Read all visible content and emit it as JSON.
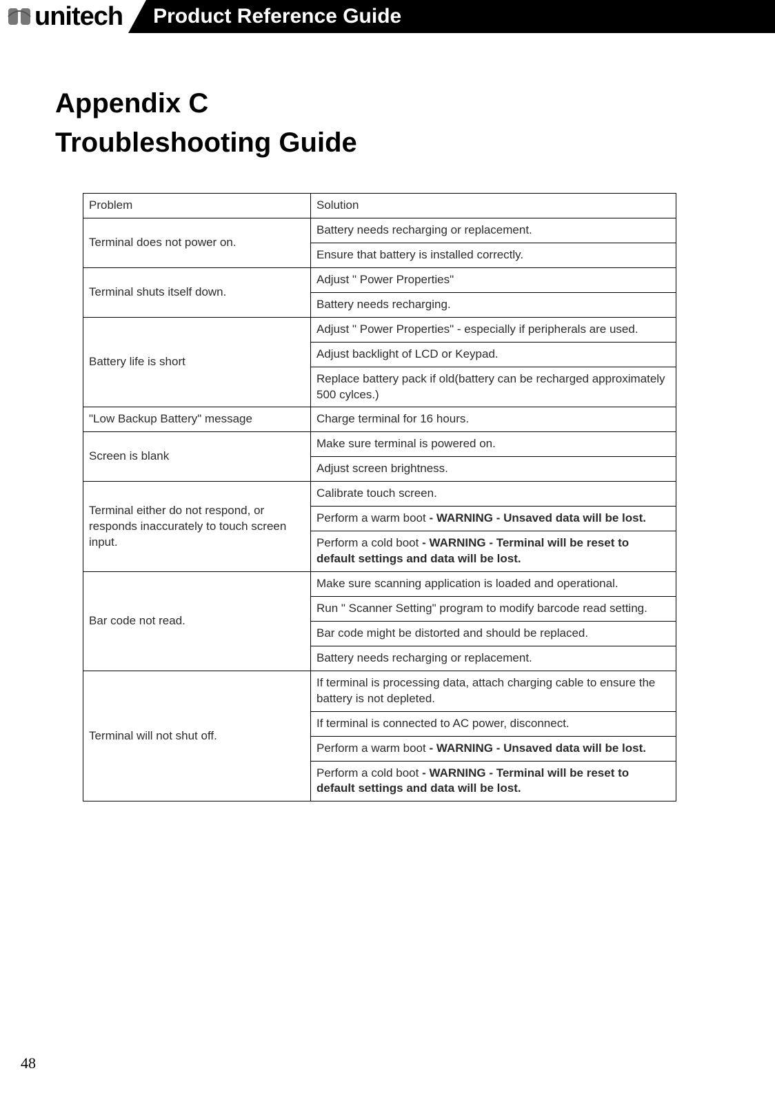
{
  "header": {
    "brand": "unitech",
    "title": "Product Reference Guide"
  },
  "page": {
    "appendix": "Appendix C",
    "section": "Troubleshooting Guide",
    "number": "48"
  },
  "table": {
    "columns": {
      "problem": "Problem",
      "solution": "Solution"
    },
    "rows": [
      {
        "problem": "Terminal does not power on.",
        "solutions": [
          {
            "text": "Battery needs recharging or replacement."
          },
          {
            "text": "Ensure that battery is installed correctly."
          }
        ]
      },
      {
        "problem": "Terminal shuts itself down.",
        "solutions": [
          {
            "text": "Adjust \" Power Properties\""
          },
          {
            "text": "Battery needs recharging."
          }
        ]
      },
      {
        "problem": "Battery life is short",
        "solutions": [
          {
            "text": "Adjust \" Power Properties\" - especially if peripherals are used."
          },
          {
            "text": "Adjust backlight of LCD or Keypad."
          },
          {
            "text": "Replace battery pack if old(battery can be recharged approximately 500 cylces.)"
          }
        ]
      },
      {
        "problem": "\"Low Backup Battery\" message",
        "solutions": [
          {
            "text": "Charge terminal for 16 hours."
          }
        ]
      },
      {
        "problem": "Screen is blank",
        "solutions": [
          {
            "text": "Make sure terminal is powered on."
          },
          {
            "text": "Adjust screen brightness."
          }
        ]
      },
      {
        "problem": "Terminal either do not respond, or responds inaccurately to touch screen input.",
        "solutions": [
          {
            "text": "Calibrate touch screen."
          },
          {
            "prefix": "Perform a warm boot ",
            "bold": "- WARNING - Unsaved data will be lost."
          },
          {
            "prefix": "Perform a cold boot ",
            "bold": "- WARNING - Terminal will be reset to default settings and data will be lost."
          }
        ]
      },
      {
        "problem": "Bar code not read.",
        "solutions": [
          {
            "text": "Make sure scanning application is loaded and operational."
          },
          {
            "text": "Run \" Scanner Setting\" program to modify barcode read setting."
          },
          {
            "text": "Bar code might be distorted and should be replaced."
          },
          {
            "text": "Battery needs recharging or replacement."
          }
        ]
      },
      {
        "problem": "Terminal will not shut off.",
        "solutions": [
          {
            "text": "If terminal is processing data, attach charging cable to ensure the battery is not depleted."
          },
          {
            "text": "If terminal is connected to AC power, disconnect."
          },
          {
            "prefix": "Perform a warm boot ",
            "bold": "- WARNING - Unsaved data will be lost."
          },
          {
            "prefix": "Perform a cold boot ",
            "bold": "- WARNING - Terminal will be reset to default settings and data will be lost."
          }
        ]
      }
    ]
  }
}
